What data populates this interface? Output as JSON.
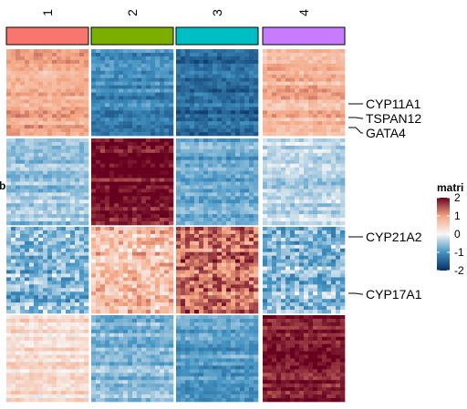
{
  "chart_data": {
    "type": "heatmap",
    "title": "",
    "column_groups": [
      "1",
      "2",
      "3",
      "4"
    ],
    "group_colors": [
      "#F8766D",
      "#7CAE00",
      "#00BFC4",
      "#C77CFF"
    ],
    "row_blocks": [
      {
        "index": 1,
        "values": [
          0.9,
          -1.1,
          -1.4,
          0.8
        ]
      },
      {
        "index": 2,
        "values": [
          -0.5,
          1.9,
          -0.8,
          -0.4
        ]
      },
      {
        "index": 3,
        "values": [
          -0.7,
          0.7,
          1.3,
          -0.6
        ]
      },
      {
        "index": 4,
        "values": [
          0.3,
          -0.6,
          -0.9,
          1.9
        ]
      }
    ],
    "row_labels": [
      {
        "label": "CYP11A1",
        "block": 1
      },
      {
        "label": "TSPAN12",
        "block": 1
      },
      {
        "label": "GATA4",
        "block": 1
      },
      {
        "label": "CYP21A2",
        "block": 3
      },
      {
        "label": "CYP17A1",
        "block": 3
      }
    ],
    "legend": {
      "title": "matri",
      "ticks": [
        2,
        1,
        0,
        -1,
        -2
      ],
      "range": [
        -2,
        2
      ],
      "colors": [
        "#053061",
        "#4393C3",
        "#F7F7F7",
        "#F4A582",
        "#67001F"
      ],
      "position": "right"
    },
    "left_label": "b"
  }
}
